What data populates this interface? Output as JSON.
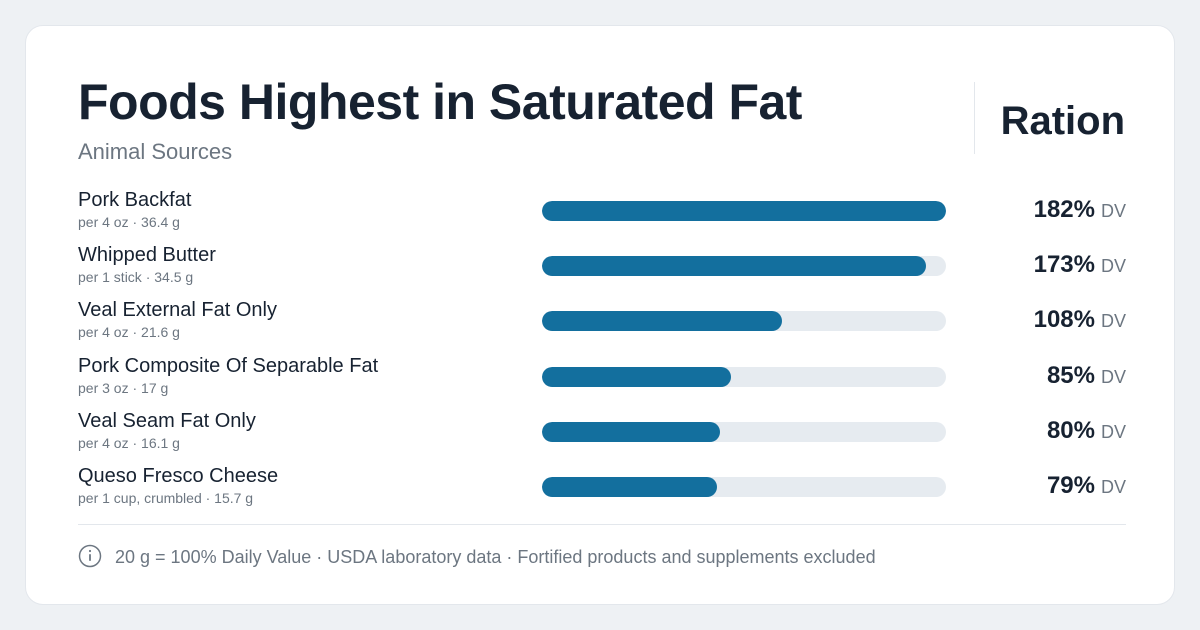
{
  "header": {
    "title": "Foods Highest in Saturated Fat",
    "subtitle": "Animal Sources",
    "brand": "Ration"
  },
  "colors": {
    "bar_fill": "#136f9e",
    "bar_track": "#e6ebf0",
    "text_primary": "#172231",
    "text_secondary": "#6c7681"
  },
  "chart_data": {
    "type": "bar",
    "orientation": "horizontal",
    "title": "Foods Highest in Saturated Fat",
    "subtitle": "Animal Sources",
    "categories": [
      "Pork Backfat",
      "Whipped Butter",
      "Veal External Fat Only",
      "Pork Composite Of Separable Fat",
      "Veal Seam Fat Only",
      "Queso Fresco Cheese"
    ],
    "servings": [
      "per 4 oz · 36.4 g",
      "per 1 stick · 34.5 g",
      "per 4 oz · 21.6 g",
      "per 3 oz · 17 g",
      "per 4 oz · 16.1 g",
      "per 1 cup, crumbled · 15.7 g"
    ],
    "values": [
      182,
      173,
      108,
      85,
      80,
      79
    ],
    "value_labels": [
      "182%",
      "173%",
      "108%",
      "85%",
      "80%",
      "79%"
    ],
    "unit": "DV",
    "xlim": [
      0,
      182
    ],
    "grid": false
  },
  "footer": {
    "note": "20 g = 100% Daily Value · USDA laboratory data · Fortified products and supplements excluded",
    "icon": "info-icon"
  }
}
